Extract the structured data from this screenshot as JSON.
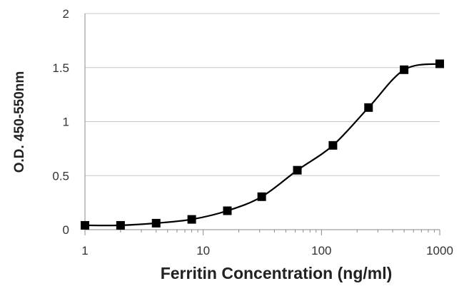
{
  "chart_data": {
    "type": "scatter",
    "title": "",
    "xlabel": "Ferritin Concentration (ng/ml)",
    "ylabel": "O.D. 450-550nm",
    "xscale": "log",
    "xlim": [
      1,
      1000
    ],
    "ylim": [
      0,
      2
    ],
    "x_ticks": [
      "1",
      "10",
      "100",
      "1000"
    ],
    "y_ticks": [
      "0",
      "0.5",
      "1",
      "1.5",
      "2"
    ],
    "grid": "horizontal",
    "legend": "none",
    "series": [
      {
        "x": [
          1,
          2,
          4,
          8,
          16,
          31.25,
          62.5,
          125,
          250,
          500,
          1000
        ],
        "y": [
          0.04,
          0.04,
          0.06,
          0.095,
          0.175,
          0.305,
          0.55,
          0.78,
          1.13,
          1.48,
          1.535
        ],
        "marker": "square",
        "line": "smooth",
        "color": "#000000"
      }
    ]
  }
}
